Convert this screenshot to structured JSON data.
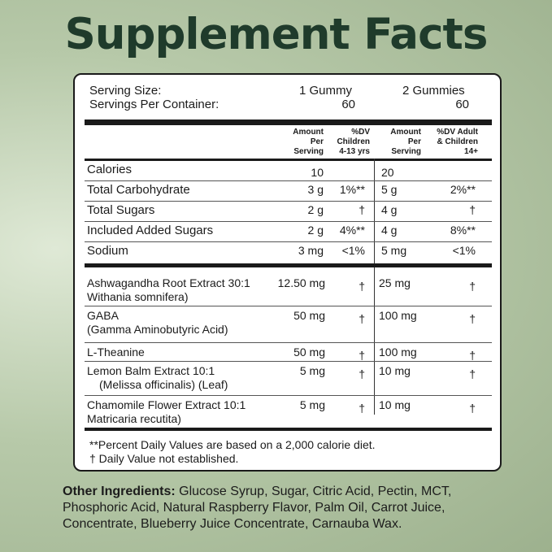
{
  "title": "Supplement Facts",
  "serving": {
    "size_label": "Serving Size:",
    "per_container_label": "Servings Per Container:",
    "size_1": "1 Gummy",
    "size_2": "2 Gummies",
    "count_1": "60",
    "count_2": "60"
  },
  "headers": {
    "amount_1": "Amount\nPer\nServing",
    "dv_1": "%DV\nChildren\n4-13 yrs",
    "amount_2": "Amount\nPer\nServing",
    "dv_2": "%DV Adult\n& Children\n14+"
  },
  "nutrients": [
    {
      "name": "Calories",
      "amt1": "10",
      "dv1": "",
      "amt2": "20",
      "dv2": ""
    },
    {
      "name": "Total Carbohydrate",
      "amt1": "3 g",
      "dv1": "1%**",
      "amt2": "5 g",
      "dv2": "2%**"
    },
    {
      "name": "Total Sugars",
      "amt1": "2 g",
      "dv1": "†",
      "amt2": "4 g",
      "dv2": "†"
    },
    {
      "name": "Included Added Sugars",
      "amt1": "2 g",
      "dv1": "4%**",
      "amt2": "4 g",
      "dv2": "8%**"
    },
    {
      "name": "Sodium",
      "amt1": "3 mg",
      "dv1": "<1%",
      "amt2": "5 mg",
      "dv2": "<1%"
    }
  ],
  "ingredients": [
    {
      "name": "Ashwagandha Root Extract 30:1",
      "sub": "Withania somnifera)",
      "amt1": "12.50 mg",
      "dv1": "†",
      "amt2": "25 mg",
      "dv2": "†"
    },
    {
      "name": "GABA",
      "sub": "(Gamma Aminobutyric Acid)",
      "amt1": "50 mg",
      "dv1": "†",
      "amt2": "100 mg",
      "dv2": "†"
    },
    {
      "name": "L-Theanine",
      "sub": "",
      "amt1": "50 mg",
      "dv1": "†",
      "amt2": "100 mg",
      "dv2": "†"
    },
    {
      "name": "Lemon Balm Extract 10:1",
      "sub": "(Melissa officinalis) (Leaf)",
      "amt1": "5 mg",
      "dv1": "†",
      "amt2": "10 mg",
      "dv2": "†"
    },
    {
      "name": "Chamomile Flower Extract 10:1",
      "sub": "Matricaria recutita)",
      "amt1": "5 mg",
      "dv1": "†",
      "amt2": "10 mg",
      "dv2": "†"
    }
  ],
  "footnotes": {
    "percent_dv": "**Percent Daily Values are based on a 2,000 calorie diet.",
    "dagger": "† Daily Value not established."
  },
  "other_ingredients": {
    "label": "Other Ingredients:",
    "text": " Glucose Syrup, Sugar, Citric Acid, Pectin, MCT, Phosphoric Acid, Natural Raspberry Flavor, Palm Oil, Carrot Juice, Concentrate, Blueberry Juice Concentrate, Carnauba Wax."
  }
}
